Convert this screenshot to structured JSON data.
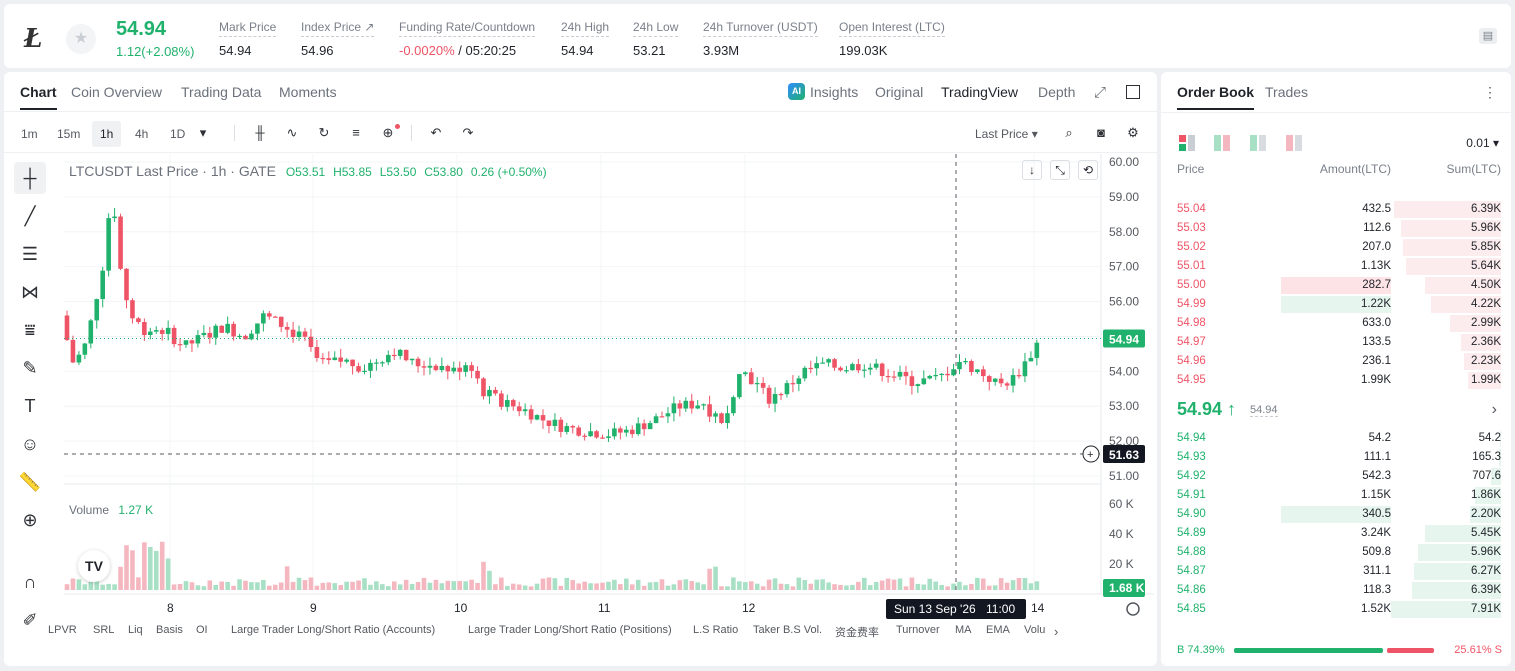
{
  "header": {
    "logo": "Ł",
    "last_price": "54.94",
    "change": "1.12(+2.08%)",
    "stats": [
      {
        "label": "Mark Price",
        "value": "54.94"
      },
      {
        "label": "Index Price ↗",
        "value": "54.96"
      },
      {
        "label": "Funding Rate/Countdown",
        "value_neg": "-0.0020%",
        "value": " / 05:20:25"
      },
      {
        "label": "24h High",
        "value": "54.94"
      },
      {
        "label": "24h Low",
        "value": "53.21"
      },
      {
        "label": "24h Turnover (USDT)",
        "value": "3.93M"
      },
      {
        "label": "Open Interest (LTC)",
        "value": "199.03K"
      }
    ]
  },
  "chart_tabs": [
    "Chart",
    "Coin Overview",
    "Trading Data",
    "Moments"
  ],
  "view_tabs": {
    "insights": "Insights",
    "original": "Original",
    "tradingview": "TradingView",
    "depth": "Depth",
    "ai": "AI"
  },
  "timeframes": [
    "1m",
    "15m",
    "1h",
    "4h",
    "1D"
  ],
  "price_source": "Last Price",
  "legend": {
    "symbol": "LTCUSDT Last Price · 1h · GATE",
    "o": "O53.51",
    "h": "H53.85",
    "l": "L53.50",
    "c": "C53.80",
    "chg": "0.26 (+0.50%)"
  },
  "volume_legend": {
    "label": "Volume",
    "value": "1.27 K"
  },
  "crosshair": {
    "price": "51.63",
    "date": "Sun 13 Sep '26",
    "time": "11:00"
  },
  "last_price_tag": "54.94",
  "volume_tag": "1.68 K",
  "bottom_indicators": [
    "LPVR",
    "SRL",
    "Liq",
    "Basis",
    "OI",
    "Large Trader Long/Short Ratio (Accounts)",
    "Large Trader Long/Short Ratio (Positions)",
    "L.S Ratio",
    "Taker B.S Vol.",
    "资金费率",
    "Turnover",
    "MA",
    "EMA",
    "Volu"
  ],
  "chart_data": {
    "type": "candlestick",
    "y_ticks": [
      "60.00",
      "59.00",
      "58.00",
      "57.00",
      "56.00",
      "55.00",
      "54.00",
      "53.00",
      "52.00",
      "51.00"
    ],
    "ylim": [
      51.0,
      60.0
    ],
    "volume_ticks": [
      "60 K",
      "40 K",
      "20 K"
    ],
    "x_ticks": [
      "8",
      "9",
      "10",
      "11",
      "12",
      "14"
    ],
    "last_price": 54.94
  },
  "orderbook": {
    "tabs": [
      "Order Book",
      "Trades"
    ],
    "precision": "0.01",
    "headers": {
      "price": "Price",
      "amount": "Amount(LTC)",
      "sum": "Sum(LTC)"
    },
    "asks": [
      {
        "p": "55.04",
        "a": "432.5",
        "s": "6.39K",
        "depth": 0.97
      },
      {
        "p": "55.03",
        "a": "112.6",
        "s": "5.96K",
        "depth": 0.91
      },
      {
        "p": "55.02",
        "a": "207.0",
        "s": "5.85K",
        "depth": 0.89
      },
      {
        "p": "55.01",
        "a": "1.13K",
        "s": "5.64K",
        "depth": 0.86
      },
      {
        "p": "55.00",
        "a": "282.7",
        "s": "4.50K",
        "depth": 0.69
      },
      {
        "p": "54.99",
        "a": "1.22K",
        "s": "4.22K",
        "depth": 0.64
      },
      {
        "p": "54.98",
        "a": "633.0",
        "s": "2.99K",
        "depth": 0.46
      },
      {
        "p": "54.97",
        "a": "133.5",
        "s": "2.36K",
        "depth": 0.36
      },
      {
        "p": "54.96",
        "a": "236.1",
        "s": "2.23K",
        "depth": 0.34
      },
      {
        "p": "54.95",
        "a": "1.99K",
        "s": "1.99K",
        "depth": 0.3
      }
    ],
    "mid_price": "54.94",
    "mid_sub": "54.94",
    "bids": [
      {
        "p": "54.94",
        "a": "54.2",
        "s": "54.2",
        "depth": 0.01
      },
      {
        "p": "54.93",
        "a": "111.1",
        "s": "165.3",
        "depth": 0.02
      },
      {
        "p": "54.92",
        "a": "542.3",
        "s": "707.6",
        "depth": 0.09
      },
      {
        "p": "54.91",
        "a": "1.15K",
        "s": "1.86K",
        "depth": 0.24
      },
      {
        "p": "54.90",
        "a": "340.5",
        "s": "2.20K",
        "depth": 0.28
      },
      {
        "p": "54.89",
        "a": "3.24K",
        "s": "5.45K",
        "depth": 0.69
      },
      {
        "p": "54.88",
        "a": "509.8",
        "s": "5.96K",
        "depth": 0.75
      },
      {
        "p": "54.87",
        "a": "311.1",
        "s": "6.27K",
        "depth": 0.79
      },
      {
        "p": "54.86",
        "a": "118.3",
        "s": "6.39K",
        "depth": 0.81
      },
      {
        "p": "54.85",
        "a": "1.52K",
        "s": "7.91K",
        "depth": 1.0
      }
    ],
    "buy_ratio": "B 74.39%",
    "sell_ratio": "25.61% S",
    "buy_fraction": 0.7439
  },
  "colors": {
    "up": "#20b26c",
    "down": "#ef5466"
  }
}
